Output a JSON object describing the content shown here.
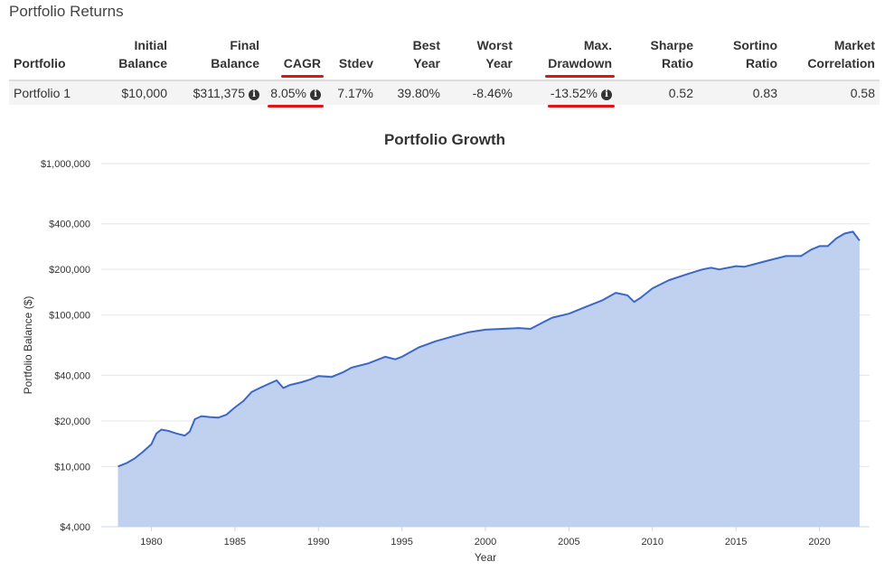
{
  "section_title": "Portfolio Returns",
  "table": {
    "headers": [
      {
        "line1": "",
        "line2": "Portfolio"
      },
      {
        "line1": "Initial",
        "line2": "Balance"
      },
      {
        "line1": "Final",
        "line2": "Balance"
      },
      {
        "line1": "",
        "line2": "CAGR"
      },
      {
        "line1": "",
        "line2": "Stdev"
      },
      {
        "line1": "Best",
        "line2": "Year"
      },
      {
        "line1": "Worst",
        "line2": "Year"
      },
      {
        "line1": "Max.",
        "line2": "Drawdown"
      },
      {
        "line1": "Sharpe",
        "line2": "Ratio"
      },
      {
        "line1": "Sortino",
        "line2": "Ratio"
      },
      {
        "line1": "Market",
        "line2": "Correlation"
      }
    ],
    "row": {
      "portfolio": "Portfolio 1",
      "initial_balance": "$10,000",
      "final_balance": "$311,375",
      "cagr": "8.05%",
      "stdev": "7.17%",
      "best_year": "39.80%",
      "worst_year": "-8.46%",
      "max_drawdown": "-13.52%",
      "sharpe_ratio": "0.52",
      "sortino_ratio": "0.83",
      "market_correlation": "0.58"
    },
    "info_icon": "i",
    "highlight_color": "#e11414"
  },
  "chart_data": {
    "type": "area",
    "title": "Portfolio Growth",
    "xlabel": "Year",
    "ylabel": "Portfolio Balance ($)",
    "yscale": "log",
    "ylim": [
      4000,
      1000000
    ],
    "xlim": [
      1977,
      2023
    ],
    "y_ticks": [
      {
        "value": 1000000,
        "label": "$1,000,000"
      },
      {
        "value": 400000,
        "label": "$400,000"
      },
      {
        "value": 200000,
        "label": "$200,000"
      },
      {
        "value": 100000,
        "label": "$100,000"
      },
      {
        "value": 40000,
        "label": "$40,000"
      },
      {
        "value": 20000,
        "label": "$20,000"
      },
      {
        "value": 10000,
        "label": "$10,000"
      },
      {
        "value": 4000,
        "label": "$4,000"
      }
    ],
    "x_ticks": [
      {
        "value": 1980,
        "label": "1980"
      },
      {
        "value": 1985,
        "label": "1985"
      },
      {
        "value": 1990,
        "label": "1990"
      },
      {
        "value": 1995,
        "label": "1995"
      },
      {
        "value": 2000,
        "label": "2000"
      },
      {
        "value": 2005,
        "label": "2005"
      },
      {
        "value": 2010,
        "label": "2010"
      },
      {
        "value": 2015,
        "label": "2015"
      },
      {
        "value": 2020,
        "label": "2020"
      }
    ],
    "grid": true,
    "legend": "none",
    "line_color": "#3b67c6",
    "fill_color": "#c0d1f0",
    "series": [
      {
        "x": [
          1978.0,
          1978.5,
          1979.0,
          1979.5,
          1980.0,
          1980.3,
          1980.6,
          1981.0,
          1981.5,
          1982.0,
          1982.3,
          1982.6,
          1983.0,
          1983.5,
          1984.0,
          1984.5,
          1985.0,
          1985.5,
          1986.0,
          1986.5,
          1987.0,
          1987.5,
          1987.9,
          1988.3,
          1989.0,
          1989.5,
          1990.0,
          1990.8,
          1991.5,
          1992.0,
          1993.0,
          1994.0,
          1994.6,
          1995.0,
          1996.0,
          1997.0,
          1998.0,
          1999.0,
          2000.0,
          2001.0,
          2002.0,
          2002.7,
          2003.5,
          2004.0,
          2005.0,
          2006.0,
          2007.0,
          2007.8,
          2008.5,
          2008.9,
          2009.3,
          2010.0,
          2011.0,
          2012.0,
          2013.0,
          2013.5,
          2014.0,
          2015.0,
          2015.5,
          2016.0,
          2017.0,
          2018.0,
          2018.9,
          2019.5,
          2020.0,
          2020.5,
          2021.0,
          2021.5,
          2022.0,
          2022.4
        ],
        "y": [
          10000,
          10500,
          11300,
          12500,
          14000,
          16500,
          17500,
          17200,
          16500,
          16000,
          17000,
          20500,
          21500,
          21200,
          21000,
          22000,
          24500,
          27000,
          31000,
          33000,
          35000,
          37000,
          33000,
          34500,
          36000,
          37500,
          39500,
          39000,
          42000,
          45000,
          48000,
          53000,
          51000,
          53000,
          61000,
          67000,
          72000,
          77000,
          80000,
          81000,
          82000,
          81000,
          90000,
          96000,
          102000,
          113000,
          125000,
          140000,
          135000,
          122000,
          130000,
          150000,
          170000,
          185000,
          200000,
          205000,
          200000,
          210000,
          208000,
          215000,
          230000,
          245000,
          245000,
          270000,
          285000,
          285000,
          320000,
          345000,
          355000,
          310000
        ]
      }
    ]
  }
}
